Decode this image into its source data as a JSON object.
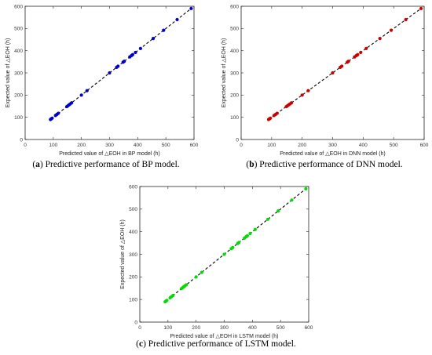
{
  "chart_data": [
    {
      "type": "scatter",
      "caption_prefix": "(",
      "caption_letter": "a",
      "caption_text": ") Predictive performance of BP model.",
      "xlabel": "Predicted value of △EOH in BP model (h)",
      "ylabel": "Expected value of △EOH (h)",
      "xlim": [
        0,
        600
      ],
      "ylim": [
        0,
        600
      ],
      "xticks": [
        0,
        100,
        200,
        300,
        400,
        500,
        600
      ],
      "yticks": [
        0,
        100,
        200,
        300,
        400,
        500,
        600
      ],
      "marker_color": "#0000cc",
      "line_color": "#000000",
      "series": [
        {
          "x": [
            90,
            93,
            96,
            108,
            113,
            118,
            148,
            152,
            156,
            160,
            165,
            200,
            220,
            300,
            325,
            330,
            348,
            352,
            372,
            378,
            382,
            392,
            410,
            455,
            492,
            540,
            590
          ],
          "y": [
            90,
            93,
            96,
            108,
            113,
            118,
            148,
            152,
            156,
            160,
            165,
            200,
            220,
            300,
            325,
            330,
            348,
            352,
            372,
            378,
            382,
            392,
            410,
            455,
            492,
            540,
            590
          ]
        }
      ]
    },
    {
      "type": "scatter",
      "caption_prefix": "(",
      "caption_letter": "b",
      "caption_text": ") Predictive performance of DNN model.",
      "xlabel": "Predicted value of △EOH in DNN model (h)",
      "ylabel": "Expected value of △EOH (h)",
      "xlim": [
        0,
        600
      ],
      "ylim": [
        0,
        600
      ],
      "xticks": [
        0,
        100,
        200,
        300,
        400,
        500,
        600
      ],
      "yticks": [
        0,
        100,
        200,
        300,
        400,
        500,
        600
      ],
      "marker_color": "#cc0000",
      "line_color": "#000000",
      "series": [
        {
          "x": [
            90,
            93,
            96,
            108,
            113,
            118,
            148,
            152,
            156,
            160,
            165,
            200,
            220,
            300,
            325,
            330,
            348,
            352,
            372,
            378,
            382,
            392,
            410,
            455,
            492,
            540,
            590
          ],
          "y": [
            90,
            93,
            96,
            108,
            113,
            118,
            148,
            152,
            156,
            160,
            165,
            200,
            220,
            300,
            325,
            330,
            348,
            352,
            372,
            378,
            382,
            392,
            410,
            455,
            492,
            540,
            590
          ]
        }
      ]
    },
    {
      "type": "scatter",
      "caption_prefix": "(",
      "caption_letter": "c",
      "caption_text": ") Predictive performance of LSTM model.",
      "xlabel": "Predicted value of △EOH in LSTM model (h)",
      "ylabel": "Expected value of △EOH (h)",
      "xlim": [
        0,
        600
      ],
      "ylim": [
        0,
        600
      ],
      "xticks": [
        0,
        100,
        200,
        300,
        400,
        500,
        600
      ],
      "yticks": [
        0,
        100,
        200,
        300,
        400,
        500,
        600
      ],
      "marker_color": "#00dd00",
      "line_color": "#000000",
      "series": [
        {
          "x": [
            90,
            93,
            96,
            108,
            113,
            118,
            148,
            152,
            156,
            160,
            165,
            200,
            220,
            300,
            325,
            330,
            348,
            352,
            372,
            378,
            382,
            392,
            410,
            455,
            492,
            540,
            590
          ],
          "y": [
            90,
            93,
            96,
            108,
            113,
            118,
            148,
            152,
            156,
            160,
            165,
            200,
            220,
            300,
            325,
            330,
            348,
            352,
            372,
            378,
            382,
            392,
            410,
            455,
            492,
            540,
            590
          ]
        }
      ]
    }
  ]
}
